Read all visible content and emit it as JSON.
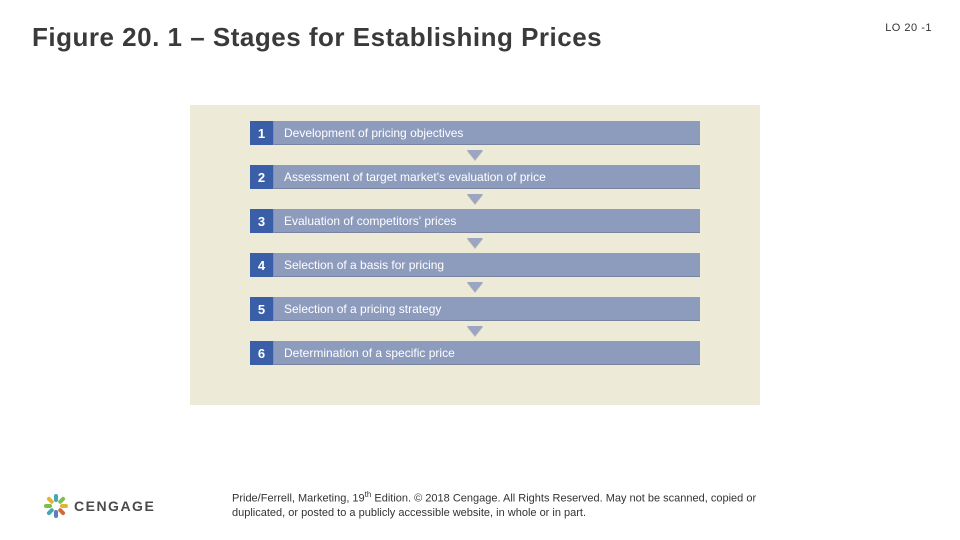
{
  "title": "Figure 20. 1 – Stages for Establishing Prices",
  "lo_label": "LO 20 -1",
  "diagram": {
    "background_color": "#eeead8",
    "num_box_color": "#3a5fa8",
    "label_bar_color": "#8d9bbd",
    "arrow_color": "#9aa6c4",
    "text_color": "#ffffff",
    "stages": [
      {
        "num": "1",
        "label": "Development of pricing objectives"
      },
      {
        "num": "2",
        "label": "Assessment of target market's evaluation of price"
      },
      {
        "num": "3",
        "label": "Evaluation of competitors' prices"
      },
      {
        "num": "4",
        "label": "Selection of a basis for pricing"
      },
      {
        "num": "5",
        "label": "Selection of a pricing strategy"
      },
      {
        "num": "6",
        "label": "Determination of a specific price"
      }
    ]
  },
  "footer_line1": "Pride/Ferrell, Marketing, 19",
  "footer_sup": "th",
  "footer_line1b": " Edition. © 2018 Cengage. All Rights Reserved. May not be scanned, copied or",
  "footer_line2": "duplicated, or posted to a publicly accessible website, in whole or in part.",
  "logo_text": "CENGAGE",
  "logo_colors": [
    "#3fa9b5",
    "#7cc04b",
    "#e2b33c",
    "#d06a3a",
    "#5d7fb9",
    "#3fa9b5",
    "#7cc04b",
    "#e2b33c"
  ]
}
